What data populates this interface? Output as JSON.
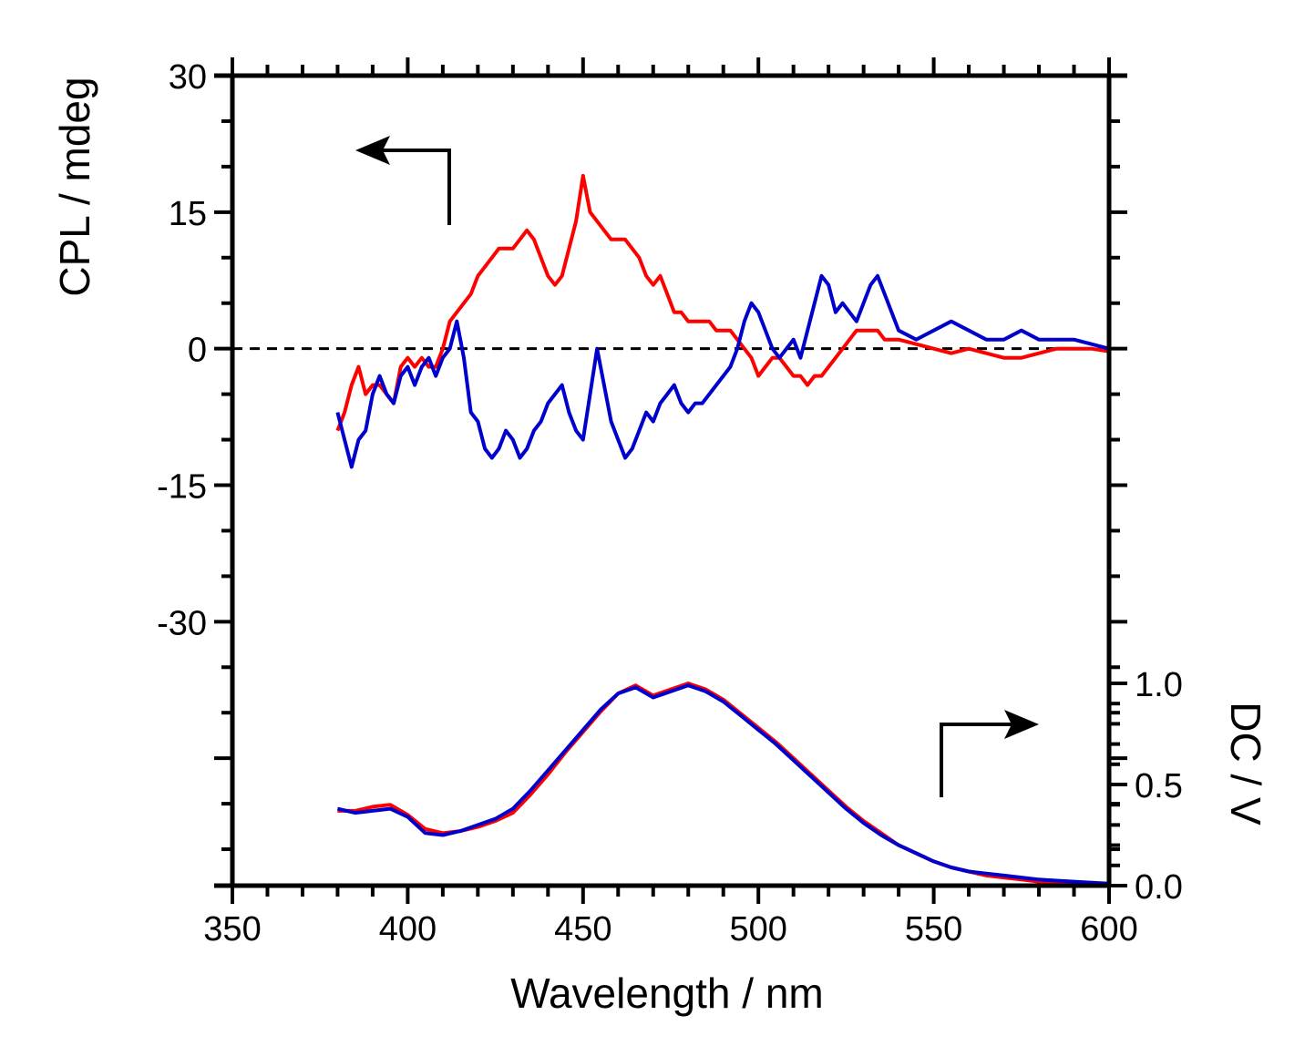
{
  "chart_data": {
    "type": "line",
    "title": "",
    "xlabel": "Wavelength / nm",
    "x_range": [
      350,
      600
    ],
    "x_ticks": [
      "350",
      "400",
      "450",
      "500",
      "550",
      "600"
    ],
    "left_axis": {
      "label": "CPL / mdeg",
      "range": [
        -59,
        30
      ],
      "ticks": [
        "30",
        "15",
        "0",
        "-15",
        "-30"
      ],
      "tick_values": [
        30,
        15,
        0,
        -15,
        -30
      ]
    },
    "right_axis": {
      "label": "DC / V",
      "range": [
        0,
        1.0
      ],
      "ticks": [
        "0.0",
        "0.5",
        "1.0"
      ],
      "tick_values": [
        0,
        0.5,
        1.0
      ]
    },
    "grid": false,
    "zero_line": "dashed",
    "colors": {
      "red": "#ff0000",
      "blue": "#0000cc",
      "axis": "#000000"
    },
    "annotations": [
      {
        "name": "arrow-left-axis",
        "meaning": "CPL curves read on left axis"
      },
      {
        "name": "arrow-right-axis",
        "meaning": "DC curves read on right axis"
      }
    ],
    "series": [
      {
        "name": "CPL red",
        "axis": "left",
        "color": "#ff0000",
        "x": [
          380,
          382,
          384,
          386,
          388,
          390,
          392,
          394,
          396,
          398,
          400,
          402,
          404,
          406,
          408,
          410,
          412,
          414,
          416,
          418,
          420,
          422,
          424,
          426,
          428,
          430,
          432,
          434,
          436,
          438,
          440,
          442,
          444,
          446,
          448,
          450,
          452,
          454,
          456,
          458,
          460,
          462,
          464,
          466,
          468,
          470,
          472,
          474,
          476,
          478,
          480,
          482,
          484,
          486,
          488,
          490,
          492,
          494,
          496,
          498,
          500,
          502,
          504,
          506,
          508,
          510,
          512,
          514,
          516,
          518,
          520,
          522,
          524,
          526,
          528,
          530,
          532,
          534,
          536,
          538,
          540,
          545,
          550,
          555,
          560,
          565,
          570,
          575,
          580,
          585,
          590,
          595,
          600
        ],
        "y": [
          -9,
          -7,
          -4,
          -2,
          -5,
          -4,
          -4,
          -5,
          -6,
          -2,
          -1,
          -2,
          -1,
          -2,
          -2,
          0,
          3,
          4,
          5,
          6,
          8,
          9,
          10,
          11,
          11,
          11,
          12,
          13,
          12,
          10,
          8,
          7,
          8,
          11,
          14,
          19,
          15,
          14,
          13,
          12,
          12,
          12,
          11,
          10,
          8,
          7,
          8,
          6,
          4,
          4,
          3,
          3,
          3,
          3,
          2,
          2,
          2,
          1,
          0,
          -1,
          -3,
          -2,
          -1,
          -1,
          -2,
          -3,
          -3,
          -4,
          -3,
          -3,
          -2,
          -1,
          0,
          1,
          2,
          2,
          2,
          2,
          1,
          1,
          1,
          0.5,
          0,
          -0.5,
          0,
          -0.5,
          -1,
          -1,
          -0.5,
          0,
          0,
          0,
          -0.3
        ]
      },
      {
        "name": "CPL blue",
        "axis": "left",
        "color": "#0000cc",
        "x": [
          380,
          382,
          384,
          386,
          388,
          390,
          392,
          394,
          396,
          398,
          400,
          402,
          404,
          406,
          408,
          410,
          412,
          414,
          416,
          418,
          420,
          422,
          424,
          426,
          428,
          430,
          432,
          434,
          436,
          438,
          440,
          442,
          444,
          446,
          448,
          450,
          452,
          454,
          456,
          458,
          460,
          462,
          464,
          466,
          468,
          470,
          472,
          474,
          476,
          478,
          480,
          482,
          484,
          486,
          488,
          490,
          492,
          494,
          496,
          498,
          500,
          502,
          504,
          506,
          508,
          510,
          512,
          514,
          516,
          518,
          520,
          522,
          524,
          526,
          528,
          530,
          532,
          534,
          536,
          538,
          540,
          545,
          550,
          555,
          560,
          565,
          570,
          575,
          580,
          585,
          590,
          595,
          600
        ],
        "y": [
          -7,
          -10,
          -13,
          -10,
          -9,
          -5,
          -3,
          -5,
          -6,
          -3,
          -2,
          -4,
          -2,
          -1,
          -3,
          -1,
          0,
          3,
          -1,
          -7,
          -8,
          -11,
          -12,
          -11,
          -9,
          -10,
          -12,
          -11,
          -9,
          -8,
          -6,
          -5,
          -4,
          -7,
          -9,
          -10,
          -5,
          0,
          -4,
          -8,
          -10,
          -12,
          -11,
          -9,
          -7,
          -8,
          -6,
          -5,
          -4,
          -6,
          -7,
          -6,
          -6,
          -5,
          -4,
          -3,
          -2,
          0,
          3,
          5,
          4,
          2,
          0,
          -1,
          0,
          1,
          -1,
          2,
          5,
          8,
          7,
          4,
          5,
          4,
          3,
          5,
          7,
          8,
          6,
          4,
          2,
          1,
          2,
          3,
          2,
          1,
          1,
          2,
          1,
          1,
          1,
          0.5,
          0
        ]
      },
      {
        "name": "DC red",
        "axis": "right",
        "color": "#ff0000",
        "x": [
          380,
          385,
          390,
          395,
          400,
          405,
          410,
          415,
          420,
          425,
          430,
          435,
          440,
          445,
          450,
          455,
          460,
          465,
          470,
          475,
          480,
          485,
          490,
          495,
          500,
          505,
          510,
          515,
          520,
          525,
          530,
          535,
          540,
          545,
          550,
          555,
          560,
          565,
          570,
          575,
          580,
          585,
          590,
          595,
          600
        ],
        "y": [
          0.37,
          0.37,
          0.39,
          0.4,
          0.35,
          0.28,
          0.26,
          0.27,
          0.29,
          0.32,
          0.36,
          0.45,
          0.55,
          0.66,
          0.76,
          0.86,
          0.95,
          0.99,
          0.94,
          0.97,
          1.0,
          0.97,
          0.92,
          0.85,
          0.78,
          0.71,
          0.63,
          0.55,
          0.47,
          0.39,
          0.32,
          0.26,
          0.2,
          0.16,
          0.12,
          0.09,
          0.07,
          0.05,
          0.04,
          0.03,
          0.02,
          0.015,
          0.01,
          0.005,
          0.0
        ]
      },
      {
        "name": "DC blue",
        "axis": "right",
        "color": "#0000cc",
        "x": [
          380,
          385,
          390,
          395,
          400,
          405,
          410,
          415,
          420,
          425,
          430,
          435,
          440,
          445,
          450,
          455,
          460,
          465,
          470,
          475,
          480,
          485,
          490,
          495,
          500,
          505,
          510,
          515,
          520,
          525,
          530,
          535,
          540,
          545,
          550,
          555,
          560,
          565,
          570,
          575,
          580,
          585,
          590,
          595,
          600
        ],
        "y": [
          0.38,
          0.36,
          0.37,
          0.38,
          0.34,
          0.26,
          0.25,
          0.27,
          0.3,
          0.33,
          0.38,
          0.47,
          0.57,
          0.67,
          0.77,
          0.87,
          0.95,
          0.98,
          0.93,
          0.96,
          0.99,
          0.96,
          0.91,
          0.84,
          0.77,
          0.7,
          0.62,
          0.54,
          0.46,
          0.38,
          0.31,
          0.25,
          0.2,
          0.16,
          0.12,
          0.09,
          0.07,
          0.06,
          0.05,
          0.04,
          0.03,
          0.025,
          0.02,
          0.015,
          0.01
        ]
      }
    ]
  }
}
